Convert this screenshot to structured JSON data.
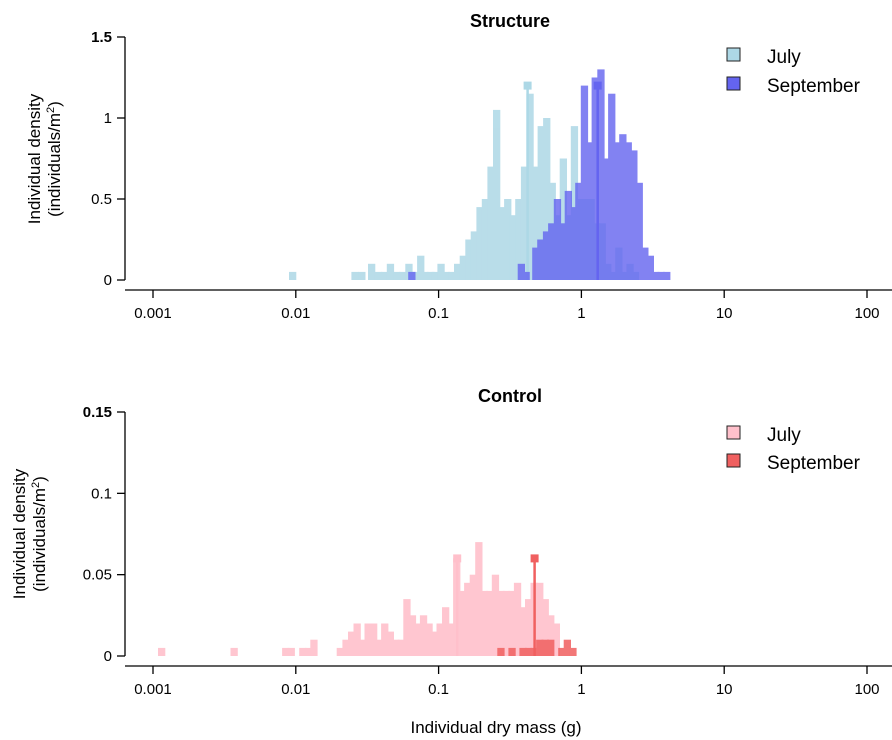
{
  "xlabel": "Individual dry mass (g)",
  "chart_data": [
    {
      "type": "histogram",
      "title": "Structure",
      "ylabel_line1": "Individual density",
      "ylabel_line2": "(individuals/m",
      "ylabel_sup": "2",
      "ylabel_end": ")",
      "xscale": "log",
      "xlim": [
        0.001,
        100
      ],
      "ylim": [
        0,
        1.5
      ],
      "xticks": [
        0.001,
        0.01,
        0.1,
        1,
        10,
        100
      ],
      "xtick_labels": [
        "0.001",
        "0.01",
        "0.1",
        "1",
        "10",
        "100"
      ],
      "yticks": [
        0,
        0.5,
        1,
        1.5
      ],
      "ytick_labels": [
        "0",
        "0.5",
        "1",
        "1.5"
      ],
      "legend_position": "top-right",
      "series": [
        {
          "name": "July",
          "color": "#add8e6",
          "opacity": 0.85,
          "median": 0.42,
          "median_height": 1.2,
          "bins": [
            [
              0.0095,
              0.05
            ],
            [
              0.026,
              0.05
            ],
            [
              0.029,
              0.05
            ],
            [
              0.034,
              0.1
            ],
            [
              0.038,
              0.05
            ],
            [
              0.042,
              0.05
            ],
            [
              0.046,
              0.1
            ],
            [
              0.051,
              0.05
            ],
            [
              0.056,
              0.05
            ],
            [
              0.062,
              0.1
            ],
            [
              0.068,
              0.05
            ],
            [
              0.075,
              0.15
            ],
            [
              0.08,
              0.05
            ],
            [
              0.088,
              0.05
            ],
            [
              0.095,
              0.05
            ],
            [
              0.104,
              0.1
            ],
            [
              0.113,
              0.05
            ],
            [
              0.124,
              0.05
            ],
            [
              0.136,
              0.1
            ],
            [
              0.149,
              0.15
            ],
            [
              0.163,
              0.25
            ],
            [
              0.178,
              0.3
            ],
            [
              0.195,
              0.45
            ],
            [
              0.213,
              0.5
            ],
            [
              0.233,
              0.7
            ],
            [
              0.255,
              1.05
            ],
            [
              0.279,
              0.45
            ],
            [
              0.305,
              0.5
            ],
            [
              0.334,
              0.4
            ],
            [
              0.365,
              0.5
            ],
            [
              0.4,
              0.7
            ],
            [
              0.437,
              1.15
            ],
            [
              0.478,
              0.7
            ],
            [
              0.523,
              0.95
            ],
            [
              0.572,
              1.0
            ],
            [
              0.625,
              0.6
            ],
            [
              0.684,
              0.4
            ],
            [
              0.748,
              0.75
            ],
            [
              0.818,
              0.4
            ],
            [
              0.894,
              0.95
            ],
            [
              0.978,
              0.5
            ],
            [
              1.07,
              0.5
            ],
            [
              1.17,
              0.5
            ],
            [
              1.28,
              0.35
            ],
            [
              1.4,
              0.35
            ],
            [
              1.53,
              0.1
            ],
            [
              1.67,
              0.05
            ],
            [
              1.83,
              0.2
            ],
            [
              2.0,
              0.05
            ],
            [
              2.19,
              0.1
            ],
            [
              2.39,
              0.05
            ]
          ]
        },
        {
          "name": "September",
          "color": "#6464f0",
          "opacity": 0.8,
          "median": 1.3,
          "median_height": 1.2,
          "bins": [
            [
              0.065,
              0.05
            ],
            [
              0.38,
              0.1
            ],
            [
              0.41,
              0.05
            ],
            [
              0.48,
              0.2
            ],
            [
              0.52,
              0.25
            ],
            [
              0.57,
              0.3
            ],
            [
              0.62,
              0.35
            ],
            [
              0.68,
              0.5
            ],
            [
              0.74,
              0.35
            ],
            [
              0.81,
              0.55
            ],
            [
              0.88,
              0.45
            ],
            [
              0.96,
              0.6
            ],
            [
              1.05,
              1.2
            ],
            [
              1.15,
              0.85
            ],
            [
              1.25,
              1.25
            ],
            [
              1.37,
              1.3
            ],
            [
              1.5,
              0.75
            ],
            [
              1.63,
              1.15
            ],
            [
              1.78,
              0.85
            ],
            [
              1.95,
              0.9
            ],
            [
              2.13,
              0.85
            ],
            [
              2.33,
              0.8
            ],
            [
              2.54,
              0.6
            ],
            [
              2.78,
              0.2
            ],
            [
              3.04,
              0.15
            ],
            [
              3.32,
              0.05
            ],
            [
              3.62,
              0.05
            ],
            [
              3.96,
              0.05
            ]
          ]
        }
      ]
    },
    {
      "type": "histogram",
      "title": "Control",
      "ylabel_line1": "Individual density",
      "ylabel_line2": "(individuals/m",
      "ylabel_sup": "2",
      "ylabel_end": ")",
      "xscale": "log",
      "xlim": [
        0.001,
        100
      ],
      "ylim": [
        0,
        0.15
      ],
      "xticks": [
        0.001,
        0.01,
        0.1,
        1,
        10,
        100
      ],
      "xtick_labels": [
        "0.001",
        "0.01",
        "0.1",
        "1",
        "10",
        "100"
      ],
      "yticks": [
        0,
        0.05,
        0.1,
        0.15
      ],
      "ytick_labels": [
        "0",
        "0.05",
        "0.1",
        "0.15"
      ],
      "legend_position": "top-right",
      "series": [
        {
          "name": "July",
          "color": "#ffc0cb",
          "opacity": 0.9,
          "median": 0.135,
          "median_height": 0.06,
          "bins": [
            [
              0.00115,
              0.005
            ],
            [
              0.0037,
              0.005
            ],
            [
              0.0085,
              0.005
            ],
            [
              0.0093,
              0.005
            ],
            [
              0.0112,
              0.005
            ],
            [
              0.0123,
              0.005
            ],
            [
              0.0134,
              0.01
            ],
            [
              0.0205,
              0.005
            ],
            [
              0.0225,
              0.01
            ],
            [
              0.0246,
              0.015
            ],
            [
              0.0269,
              0.02
            ],
            [
              0.0294,
              0.01
            ],
            [
              0.0321,
              0.02
            ],
            [
              0.0351,
              0.02
            ],
            [
              0.0384,
              0.01
            ],
            [
              0.042,
              0.02
            ],
            [
              0.0459,
              0.015
            ],
            [
              0.0502,
              0.01
            ],
            [
              0.0549,
              0.01
            ],
            [
              0.06,
              0.035
            ],
            [
              0.0656,
              0.025
            ],
            [
              0.0717,
              0.02
            ],
            [
              0.0784,
              0.025
            ],
            [
              0.0857,
              0.02
            ],
            [
              0.0937,
              0.015
            ],
            [
              0.1025,
              0.02
            ],
            [
              0.112,
              0.03
            ],
            [
              0.1225,
              0.02
            ],
            [
              0.1339,
              0.06
            ],
            [
              0.1464,
              0.04
            ],
            [
              0.16,
              0.045
            ],
            [
              0.175,
              0.05
            ],
            [
              0.1913,
              0.07
            ],
            [
              0.2092,
              0.04
            ],
            [
              0.2287,
              0.04
            ],
            [
              0.25,
              0.05
            ],
            [
              0.2734,
              0.04
            ],
            [
              0.2989,
              0.04
            ],
            [
              0.3268,
              0.04
            ],
            [
              0.3573,
              0.045
            ],
            [
              0.3906,
              0.03
            ],
            [
              0.4271,
              0.035
            ],
            [
              0.4669,
              0.045
            ],
            [
              0.5105,
              0.045
            ],
            [
              0.5582,
              0.035
            ],
            [
              0.6103,
              0.025
            ],
            [
              0.6672,
              0.02
            ]
          ]
        },
        {
          "name": "September",
          "color": "#f06060",
          "opacity": 0.85,
          "median": 0.47,
          "median_height": 0.06,
          "bins": [
            [
              0.2734,
              0.005
            ],
            [
              0.3268,
              0.005
            ],
            [
              0.3906,
              0.005
            ],
            [
              0.4271,
              0.005
            ],
            [
              0.4669,
              0.005
            ],
            [
              0.5105,
              0.01
            ],
            [
              0.5582,
              0.01
            ],
            [
              0.6103,
              0.01
            ],
            [
              0.7295,
              0.005
            ],
            [
              0.7977,
              0.01
            ],
            [
              0.8722,
              0.005
            ]
          ]
        }
      ]
    }
  ]
}
